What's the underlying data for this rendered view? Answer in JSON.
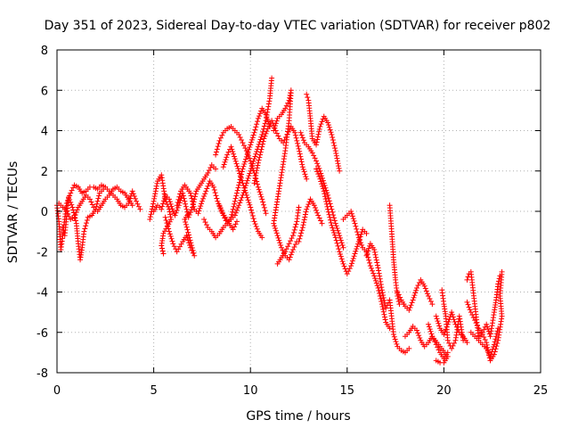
{
  "chart_data": {
    "type": "scatter",
    "title": "Day 351 of 2023, Sidereal Day-to-day VTEC variation (SDTVAR) for receiver p802",
    "xlabel": "GPS time / hours",
    "ylabel": "SDTVAR / TECUs",
    "xlim": [
      0,
      25
    ],
    "ylim": [
      -8,
      8
    ],
    "xticks": [
      0,
      5,
      10,
      15,
      20,
      25
    ],
    "yticks": [
      -8,
      -6,
      -4,
      -2,
      0,
      2,
      4,
      6,
      8
    ],
    "grid": true,
    "marker": "+",
    "color": "#ff0000",
    "segments": [
      [
        [
          0.0,
          0.3
        ],
        [
          0.1,
          -0.5
        ],
        [
          0.2,
          -1.9
        ],
        [
          0.3,
          -1.2
        ],
        [
          0.5,
          0.4
        ],
        [
          0.7,
          0.9
        ],
        [
          0.9,
          1.3
        ],
        [
          1.1,
          1.2
        ],
        [
          1.3,
          0.9
        ],
        [
          1.5,
          1.0
        ],
        [
          1.7,
          1.2
        ],
        [
          1.9,
          1.2
        ],
        [
          2.1,
          1.1
        ],
        [
          2.3,
          1.3
        ],
        [
          2.5,
          1.2
        ],
        [
          2.7,
          1.0
        ],
        [
          2.9,
          0.8
        ],
        [
          3.1,
          0.6
        ],
        [
          3.3,
          0.3
        ],
        [
          3.5,
          0.2
        ],
        [
          3.7,
          0.4
        ],
        [
          3.9,
          1.0
        ],
        [
          4.1,
          0.5
        ],
        [
          4.3,
          0.1
        ]
      ],
      [
        [
          0.1,
          0.4
        ],
        [
          0.3,
          0.2
        ],
        [
          0.5,
          0.0
        ],
        [
          0.7,
          -0.4
        ],
        [
          0.9,
          -0.3
        ],
        [
          1.1,
          0.2
        ],
        [
          1.3,
          0.5
        ],
        [
          1.5,
          0.8
        ],
        [
          1.7,
          0.6
        ],
        [
          1.9,
          0.2
        ],
        [
          2.1,
          0.0
        ],
        [
          2.3,
          0.3
        ],
        [
          2.5,
          0.6
        ],
        [
          2.7,
          0.8
        ],
        [
          2.9,
          1.1
        ],
        [
          3.1,
          1.2
        ],
        [
          3.3,
          1.0
        ],
        [
          3.5,
          0.9
        ],
        [
          3.7,
          0.6
        ],
        [
          3.9,
          0.3
        ]
      ],
      [
        [
          0.3,
          -0.8
        ],
        [
          0.4,
          -1.2
        ],
        [
          0.6,
          0.7
        ],
        [
          0.8,
          0.2
        ],
        [
          1.0,
          -0.6
        ],
        [
          1.1,
          -1.6
        ],
        [
          1.2,
          -2.4
        ],
        [
          1.3,
          -1.8
        ],
        [
          1.4,
          -1.0
        ],
        [
          1.6,
          -0.3
        ],
        [
          1.8,
          -0.2
        ],
        [
          2.0,
          0.1
        ],
        [
          2.2,
          0.9
        ],
        [
          2.4,
          1.1
        ]
      ],
      [
        [
          4.8,
          -0.4
        ],
        [
          5.0,
          0.5
        ],
        [
          5.2,
          1.5
        ],
        [
          5.4,
          1.8
        ],
        [
          5.6,
          0.6
        ],
        [
          5.8,
          0.1
        ],
        [
          5.9,
          -0.4
        ],
        [
          5.5,
          -1.1
        ],
        [
          5.4,
          -1.7
        ],
        [
          5.5,
          -2.1
        ]
      ],
      [
        [
          5.0,
          0.0
        ],
        [
          5.2,
          0.3
        ],
        [
          5.4,
          0.1
        ],
        [
          5.6,
          0.8
        ],
        [
          5.8,
          0.6
        ],
        [
          6.0,
          0.0
        ],
        [
          6.1,
          -0.2
        ],
        [
          6.3,
          0.3
        ],
        [
          6.5,
          0.9
        ],
        [
          6.6,
          0.5
        ],
        [
          6.8,
          -0.3
        ],
        [
          7.0,
          0.2
        ],
        [
          7.2,
          1.0
        ],
        [
          7.4,
          1.3
        ],
        [
          7.6,
          1.6
        ],
        [
          7.8,
          1.9
        ],
        [
          8.0,
          2.3
        ],
        [
          8.2,
          2.1
        ]
      ],
      [
        [
          5.6,
          -0.3
        ],
        [
          5.8,
          -1.0
        ],
        [
          6.0,
          -1.6
        ],
        [
          6.2,
          -2.0
        ],
        [
          6.5,
          -1.5
        ],
        [
          6.7,
          -1.2
        ],
        [
          6.9,
          -1.8
        ],
        [
          7.1,
          -2.2
        ],
        [
          6.6,
          -0.4
        ],
        [
          6.8,
          -0.1
        ]
      ],
      [
        [
          6.2,
          0.3
        ],
        [
          6.4,
          1.0
        ],
        [
          6.6,
          1.3
        ],
        [
          6.9,
          0.9
        ],
        [
          7.1,
          0.1
        ],
        [
          7.3,
          -0.1
        ],
        [
          7.5,
          0.5
        ],
        [
          7.7,
          1.0
        ],
        [
          7.9,
          1.5
        ],
        [
          8.1,
          1.2
        ],
        [
          8.3,
          0.5
        ],
        [
          8.5,
          0.0
        ],
        [
          8.7,
          -0.3
        ],
        [
          8.9,
          -0.6
        ],
        [
          9.1,
          -0.9
        ],
        [
          9.3,
          -0.5
        ]
      ],
      [
        [
          7.6,
          -0.4
        ],
        [
          7.8,
          -0.8
        ],
        [
          8.0,
          -1.0
        ],
        [
          8.2,
          -1.3
        ],
        [
          8.4,
          -1.1
        ],
        [
          8.6,
          -0.8
        ],
        [
          8.8,
          -0.6
        ],
        [
          9.0,
          -0.4
        ],
        [
          9.2,
          -0.2
        ],
        [
          9.4,
          0.3
        ],
        [
          9.6,
          0.8
        ],
        [
          9.8,
          1.4
        ],
        [
          10.0,
          2.0
        ],
        [
          10.2,
          2.6
        ],
        [
          10.4,
          3.2
        ],
        [
          10.6,
          3.8
        ],
        [
          10.8,
          4.5
        ],
        [
          11.0,
          5.6
        ],
        [
          11.1,
          6.6
        ]
      ],
      [
        [
          8.2,
          2.8
        ],
        [
          8.4,
          3.5
        ],
        [
          8.6,
          3.9
        ],
        [
          8.8,
          4.1
        ],
        [
          9.0,
          4.2
        ],
        [
          9.2,
          4.0
        ],
        [
          9.4,
          3.8
        ],
        [
          9.6,
          3.4
        ],
        [
          9.8,
          3.0
        ],
        [
          10.0,
          2.5
        ],
        [
          10.2,
          1.9
        ],
        [
          10.4,
          1.2
        ],
        [
          10.6,
          0.6
        ],
        [
          10.8,
          -0.1
        ]
      ],
      [
        [
          8.6,
          2.2
        ],
        [
          8.8,
          2.8
        ],
        [
          9.0,
          3.2
        ],
        [
          9.2,
          2.6
        ],
        [
          9.4,
          2.0
        ],
        [
          9.6,
          1.4
        ],
        [
          9.8,
          0.8
        ],
        [
          10.0,
          0.2
        ],
        [
          10.2,
          -0.5
        ],
        [
          10.4,
          -1.0
        ],
        [
          10.6,
          -1.3
        ]
      ],
      [
        [
          8.4,
          0.3
        ],
        [
          8.6,
          -0.2
        ],
        [
          8.8,
          -0.6
        ],
        [
          9.0,
          -0.3
        ],
        [
          9.2,
          0.5
        ],
        [
          9.4,
          1.3
        ],
        [
          9.6,
          2.1
        ],
        [
          9.8,
          2.7
        ],
        [
          10.0,
          3.3
        ],
        [
          10.2,
          3.9
        ],
        [
          10.4,
          4.6
        ],
        [
          10.6,
          5.1
        ],
        [
          10.8,
          4.8
        ],
        [
          11.0,
          4.2
        ]
      ],
      [
        [
          10.2,
          1.4
        ],
        [
          10.4,
          2.4
        ],
        [
          10.6,
          3.2
        ],
        [
          10.7,
          3.6
        ],
        [
          10.9,
          4.1
        ],
        [
          11.1,
          4.5
        ],
        [
          11.3,
          4.0
        ],
        [
          11.5,
          3.6
        ],
        [
          11.7,
          3.4
        ],
        [
          11.9,
          3.8
        ],
        [
          12.1,
          4.2
        ],
        [
          12.3,
          3.9
        ],
        [
          12.5,
          3.1
        ],
        [
          12.7,
          2.2
        ],
        [
          12.9,
          1.6
        ]
      ],
      [
        [
          11.2,
          4.0
        ],
        [
          11.4,
          4.6
        ],
        [
          11.6,
          4.8
        ],
        [
          11.8,
          5.1
        ],
        [
          12.0,
          5.5
        ],
        [
          12.1,
          6.0
        ],
        [
          12.0,
          4.5
        ],
        [
          11.8,
          3.0
        ],
        [
          11.6,
          1.8
        ],
        [
          11.4,
          0.6
        ],
        [
          11.2,
          -0.6
        ],
        [
          11.4,
          -1.2
        ],
        [
          11.6,
          -1.8
        ],
        [
          11.8,
          -2.2
        ],
        [
          12.0,
          -2.4
        ],
        [
          12.2,
          -1.9
        ],
        [
          12.4,
          -1.5
        ]
      ],
      [
        [
          11.4,
          -2.6
        ],
        [
          11.6,
          -2.3
        ],
        [
          11.8,
          -2.0
        ],
        [
          12.0,
          -1.6
        ],
        [
          12.2,
          -1.2
        ],
        [
          12.4,
          -0.5
        ],
        [
          12.5,
          0.2
        ]
      ],
      [
        [
          12.6,
          3.9
        ],
        [
          12.8,
          3.4
        ],
        [
          13.0,
          3.2
        ],
        [
          13.2,
          2.9
        ],
        [
          13.4,
          2.5
        ],
        [
          13.6,
          2.0
        ],
        [
          13.8,
          1.4
        ],
        [
          14.0,
          0.8
        ],
        [
          14.2,
          0.1
        ],
        [
          14.4,
          -0.6
        ],
        [
          14.6,
          -1.2
        ],
        [
          14.8,
          -1.8
        ]
      ],
      [
        [
          12.5,
          -1.5
        ],
        [
          12.7,
          -0.8
        ],
        [
          12.9,
          0.1
        ],
        [
          13.1,
          0.6
        ],
        [
          13.3,
          0.3
        ],
        [
          13.5,
          -0.2
        ],
        [
          13.7,
          -0.6
        ]
      ],
      [
        [
          12.9,
          5.8
        ],
        [
          13.0,
          5.5
        ],
        [
          13.1,
          4.6
        ],
        [
          13.2,
          3.6
        ],
        [
          13.4,
          3.3
        ],
        [
          13.6,
          4.2
        ],
        [
          13.8,
          4.7
        ],
        [
          14.0,
          4.4
        ],
        [
          14.2,
          3.8
        ],
        [
          14.4,
          3.0
        ],
        [
          14.6,
          2.0
        ]
      ],
      [
        [
          13.4,
          2.1
        ],
        [
          13.6,
          1.6
        ],
        [
          13.8,
          1.0
        ],
        [
          14.0,
          0.1
        ],
        [
          14.2,
          -0.7
        ],
        [
          14.4,
          -1.3
        ],
        [
          14.6,
          -2.0
        ],
        [
          14.8,
          -2.6
        ],
        [
          15.0,
          -3.1
        ],
        [
          15.2,
          -2.7
        ],
        [
          15.4,
          -2.1
        ],
        [
          15.6,
          -1.5
        ],
        [
          15.8,
          -0.9
        ],
        [
          16.0,
          -1.1
        ]
      ],
      [
        [
          14.8,
          -0.4
        ],
        [
          15.0,
          -0.2
        ],
        [
          15.2,
          0.0
        ],
        [
          15.4,
          -0.6
        ],
        [
          15.6,
          -1.3
        ],
        [
          15.8,
          -1.8
        ],
        [
          16.0,
          -2.0
        ],
        [
          16.2,
          -2.7
        ],
        [
          16.4,
          -3.2
        ],
        [
          16.6,
          -3.8
        ],
        [
          16.8,
          -4.6
        ],
        [
          17.0,
          -5.5
        ],
        [
          17.2,
          -5.8
        ]
      ],
      [
        [
          16.0,
          -2.2
        ],
        [
          16.2,
          -1.6
        ],
        [
          16.4,
          -1.9
        ],
        [
          16.6,
          -2.8
        ],
        [
          16.8,
          -3.9
        ],
        [
          17.0,
          -4.8
        ],
        [
          17.2,
          -4.4
        ],
        [
          17.4,
          -6.1
        ],
        [
          17.6,
          -6.7
        ],
        [
          17.8,
          -6.9
        ],
        [
          18.0,
          -7.0
        ],
        [
          18.2,
          -6.8
        ]
      ],
      [
        [
          17.2,
          0.3
        ],
        [
          17.3,
          -1.0
        ],
        [
          17.4,
          -2.4
        ],
        [
          17.5,
          -3.4
        ],
        [
          17.6,
          -4.2
        ],
        [
          17.7,
          -4.6
        ]
      ],
      [
        [
          17.6,
          -4.0
        ],
        [
          17.8,
          -4.4
        ],
        [
          18.0,
          -4.7
        ],
        [
          18.2,
          -4.9
        ],
        [
          18.4,
          -4.4
        ],
        [
          18.6,
          -3.8
        ],
        [
          18.8,
          -3.4
        ],
        [
          19.0,
          -3.7
        ],
        [
          19.2,
          -4.2
        ],
        [
          19.4,
          -4.6
        ]
      ],
      [
        [
          18.0,
          -6.2
        ],
        [
          18.2,
          -6.0
        ],
        [
          18.4,
          -5.7
        ],
        [
          18.6,
          -5.9
        ],
        [
          18.8,
          -6.4
        ],
        [
          19.0,
          -6.7
        ],
        [
          19.2,
          -6.5
        ],
        [
          19.4,
          -6.2
        ],
        [
          19.6,
          -6.6
        ],
        [
          19.8,
          -7.0
        ],
        [
          20.0,
          -7.3
        ],
        [
          20.2,
          -7.0
        ]
      ],
      [
        [
          19.6,
          -5.2
        ],
        [
          19.8,
          -5.8
        ],
        [
          20.0,
          -6.1
        ],
        [
          20.2,
          -5.6
        ],
        [
          20.4,
          -5.0
        ],
        [
          20.6,
          -5.6
        ],
        [
          20.8,
          -6.0
        ],
        [
          21.0,
          -6.2
        ],
        [
          21.2,
          -6.5
        ]
      ],
      [
        [
          19.9,
          -3.9
        ],
        [
          20.0,
          -4.6
        ],
        [
          20.1,
          -5.2
        ],
        [
          20.2,
          -6.4
        ],
        [
          20.4,
          -6.8
        ],
        [
          20.6,
          -6.4
        ],
        [
          20.8,
          -5.2
        ],
        [
          21.0,
          -6.4
        ]
      ],
      [
        [
          19.6,
          -7.4
        ],
        [
          19.8,
          -7.5
        ],
        [
          20.0,
          -7.5
        ],
        [
          20.2,
          -7.2
        ],
        [
          19.4,
          -6.2
        ],
        [
          19.2,
          -5.6
        ]
      ],
      [
        [
          21.2,
          -4.5
        ],
        [
          21.4,
          -5.0
        ],
        [
          21.6,
          -5.4
        ],
        [
          21.8,
          -5.8
        ],
        [
          22.0,
          -6.1
        ],
        [
          22.2,
          -6.5
        ],
        [
          22.3,
          -7.0
        ],
        [
          22.4,
          -7.4
        ],
        [
          22.6,
          -7.1
        ],
        [
          22.8,
          -6.4
        ],
        [
          23.0,
          -5.2
        ],
        [
          22.9,
          -4.2
        ],
        [
          23.0,
          -3.0
        ]
      ],
      [
        [
          21.2,
          -3.4
        ],
        [
          21.3,
          -3.1
        ],
        [
          21.4,
          -3.0
        ],
        [
          21.8,
          -6.3
        ],
        [
          22.0,
          -6.0
        ],
        [
          22.2,
          -5.6
        ],
        [
          22.4,
          -6.2
        ],
        [
          22.6,
          -5.0
        ],
        [
          22.7,
          -4.4
        ],
        [
          22.8,
          -3.6
        ],
        [
          22.9,
          -3.2
        ]
      ],
      [
        [
          21.4,
          -6.0
        ],
        [
          21.6,
          -6.2
        ],
        [
          21.8,
          -6.4
        ],
        [
          22.0,
          -6.6
        ],
        [
          22.2,
          -6.8
        ],
        [
          22.4,
          -7.2
        ],
        [
          22.6,
          -6.6
        ],
        [
          22.8,
          -5.8
        ]
      ]
    ]
  }
}
